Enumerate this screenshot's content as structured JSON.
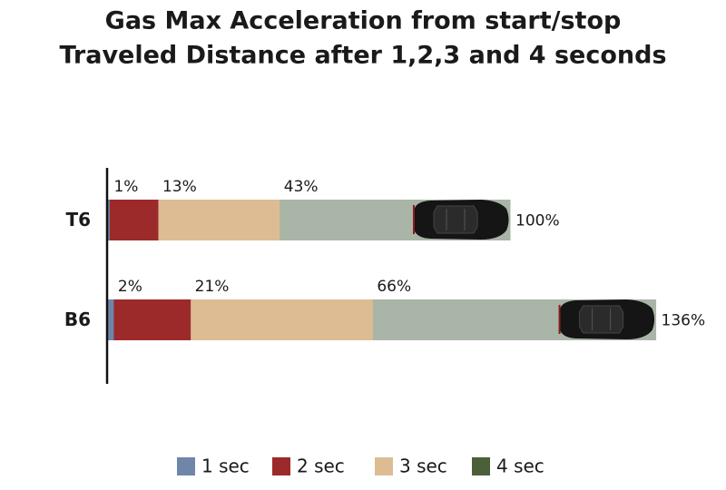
{
  "chart_data": {
    "type": "bar",
    "orientation": "horizontal",
    "title": [
      "Gas Max Acceleration from start/stop",
      "Traveled Distance after 1,2,3 and 4 seconds"
    ],
    "categories": [
      "T6",
      "B6"
    ],
    "series": [
      {
        "name": "1 sec",
        "color": "#6f86a8",
        "values": [
          1,
          2
        ],
        "value_labels": [
          "1%",
          "2%"
        ]
      },
      {
        "name": "2 sec",
        "color": "#9c2a2b",
        "values": [
          13,
          21
        ],
        "value_labels": [
          "13%",
          "21%"
        ]
      },
      {
        "name": "3 sec",
        "color": "#ddbb93",
        "values": [
          43,
          66
        ],
        "value_labels": [
          "43%",
          "66%"
        ]
      },
      {
        "name": "4 sec",
        "color": "#4b5f38",
        "bar_color": "#a9b5a7",
        "values": [
          100,
          136
        ],
        "value_labels": [
          "100%",
          "136%"
        ]
      }
    ],
    "xlim": [
      0,
      150
    ],
    "legend": "bottom"
  }
}
